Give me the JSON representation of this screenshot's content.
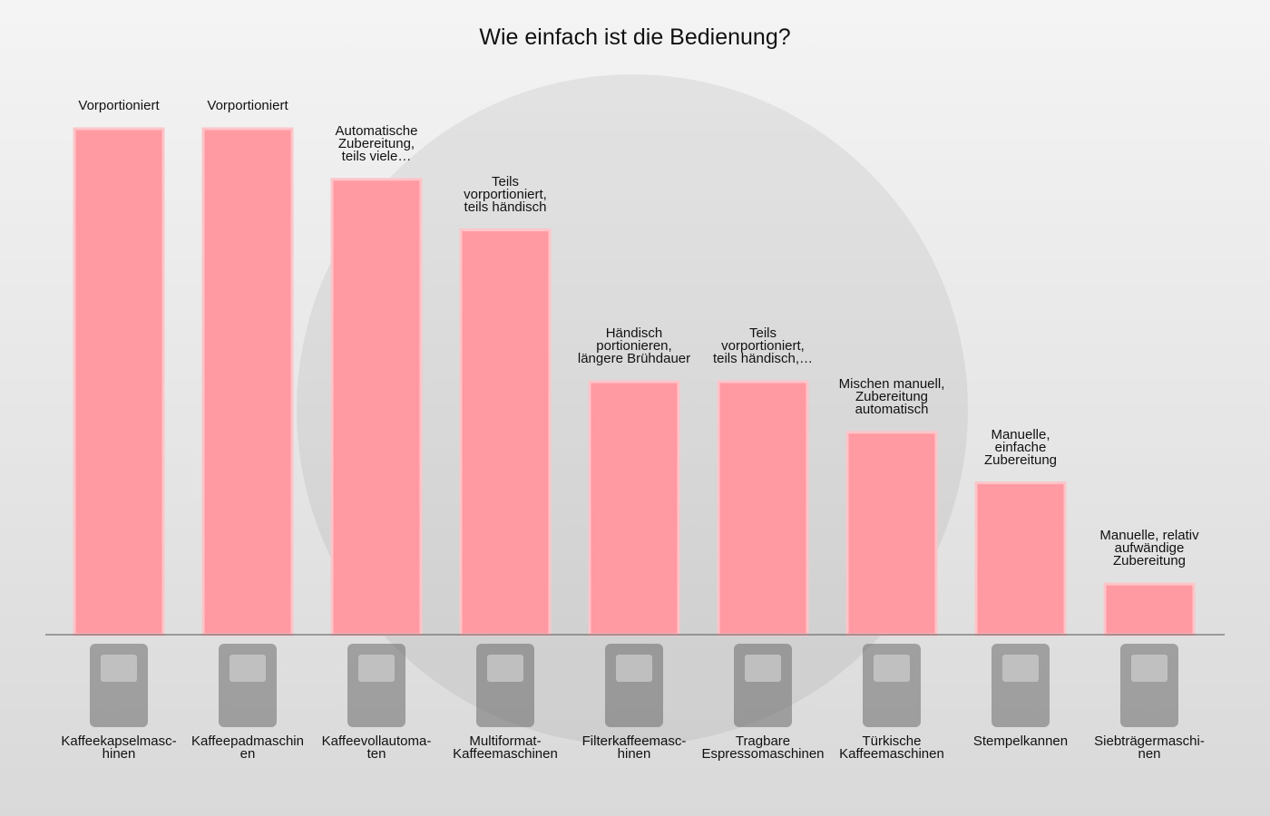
{
  "chart_data": {
    "type": "bar",
    "title": "Wie einfach ist die Bedienung?",
    "categories": [
      "Kaffeekapselmasc-\nhinen",
      "Kaffeepadmaschin\nen",
      "Kaffeevollautoma-\nten",
      "Multiformat-\nKaffeemaschinen",
      "Filterkaffeemasc-\nhinen",
      "Tragbare\nEspressomaschinen",
      "Türkische\nKaffeemaschinen",
      "Stempelkannen",
      "Siebträgermaschi-\nnen"
    ],
    "values": [
      10,
      10,
      9,
      8,
      5,
      5,
      4,
      3,
      1
    ],
    "annotations": [
      "Vorportioniert",
      "Vorportioniert",
      "Automatische\nZubereitung,\nteils viele…",
      "Teils\nvorportioniert,\nteils händisch",
      "Händisch\nportionieren,\nlängere Brühdauer",
      "Teils\nvorportioniert,\nteils händisch,…",
      "Mischen manuell,\nZubereitung\nautomatisch",
      "Manuelle,\neinfache\nZubereitung",
      "Manuelle, relativ\naufwändige\nZubereitung"
    ],
    "color": "#ff9aa2",
    "ylim": [
      0,
      10
    ]
  }
}
